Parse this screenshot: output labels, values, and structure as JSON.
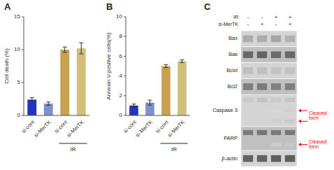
{
  "chart_data": [
    {
      "type": "bar",
      "title": "A",
      "ylabel": "Cell death (%)",
      "categories": [
        "si-cont",
        "si-MerTK",
        "si-cont",
        "si-MerTK"
      ],
      "values": [
        2.4,
        1.8,
        10.0,
        10.2
      ],
      "errors": [
        0.3,
        0.25,
        0.4,
        0.85
      ],
      "colors": [
        "#2535bb",
        "#8090cc",
        "#c8a050",
        "#cfc07a"
      ],
      "ylim": [
        0,
        15
      ],
      "yticks": [
        0,
        5,
        10,
        15
      ],
      "grid": false,
      "annotations": [
        {
          "text": "IR",
          "span": [
            2,
            3
          ]
        }
      ]
    },
    {
      "type": "bar",
      "title": "B",
      "ylabel": "Annexin V-positive cells(%)",
      "categories": [
        "si-cont",
        "si-MerTK",
        "si-cont",
        "si-MerTK"
      ],
      "values": [
        1.0,
        1.3,
        5.0,
        5.5
      ],
      "errors": [
        0.15,
        0.25,
        0.15,
        0.15
      ],
      "colors": [
        "#2535bb",
        "#8090cc",
        "#c8a050",
        "#cfc07a"
      ],
      "ylim": [
        0,
        10
      ],
      "yticks": [
        0,
        2,
        4,
        6,
        8,
        10
      ],
      "grid": false,
      "annotations": [
        {
          "text": "IR",
          "span": [
            2,
            3
          ]
        }
      ]
    },
    {
      "type": "blot",
      "title": "C",
      "lanes": [
        {
          "name": "IR",
          "labels": [
            "-",
            "-",
            "+",
            "+"
          ]
        },
        {
          "name": "si-MerTK",
          "labels": [
            "-",
            "+",
            "-",
            "+"
          ]
        }
      ],
      "rows": [
        {
          "name": "Bax",
          "values": [
            0.45,
            0.45,
            0.48,
            0.42
          ]
        },
        {
          "name": "Bak",
          "values": [
            0.82,
            0.85,
            0.8,
            0.82
          ]
        },
        {
          "name": "Bclxl",
          "values": [
            0.35,
            0.35,
            0.33,
            0.33
          ]
        },
        {
          "name": "Bcl2",
          "values": [
            0.7,
            0.72,
            0.68,
            0.7
          ]
        },
        {
          "name": "Caspase 3",
          "values": [
            0.3,
            0.33,
            0.3,
            0.32
          ]
        },
        {
          "name": "PARP",
          "values": [
            0.72,
            0.74,
            0.72,
            0.74
          ]
        },
        {
          "name": "β-actin",
          "values": [
            0.85,
            0.85,
            0.87,
            0.88
          ]
        }
      ],
      "cleaved": [
        {
          "row": "Caspase 3",
          "label": "Cleaved\nform",
          "bands": [
            [
              null,
              null,
              0.22,
              0.25
            ],
            [
              null,
              null,
              0.26,
              0.29
            ]
          ]
        },
        {
          "row": "PARP",
          "label": "Cleaved\nform",
          "bands": [
            [
              null,
              null,
              0.28,
              0.31
            ]
          ]
        }
      ],
      "row_colors": [
        "#d4d4d4",
        "#c0c0c0"
      ]
    }
  ]
}
